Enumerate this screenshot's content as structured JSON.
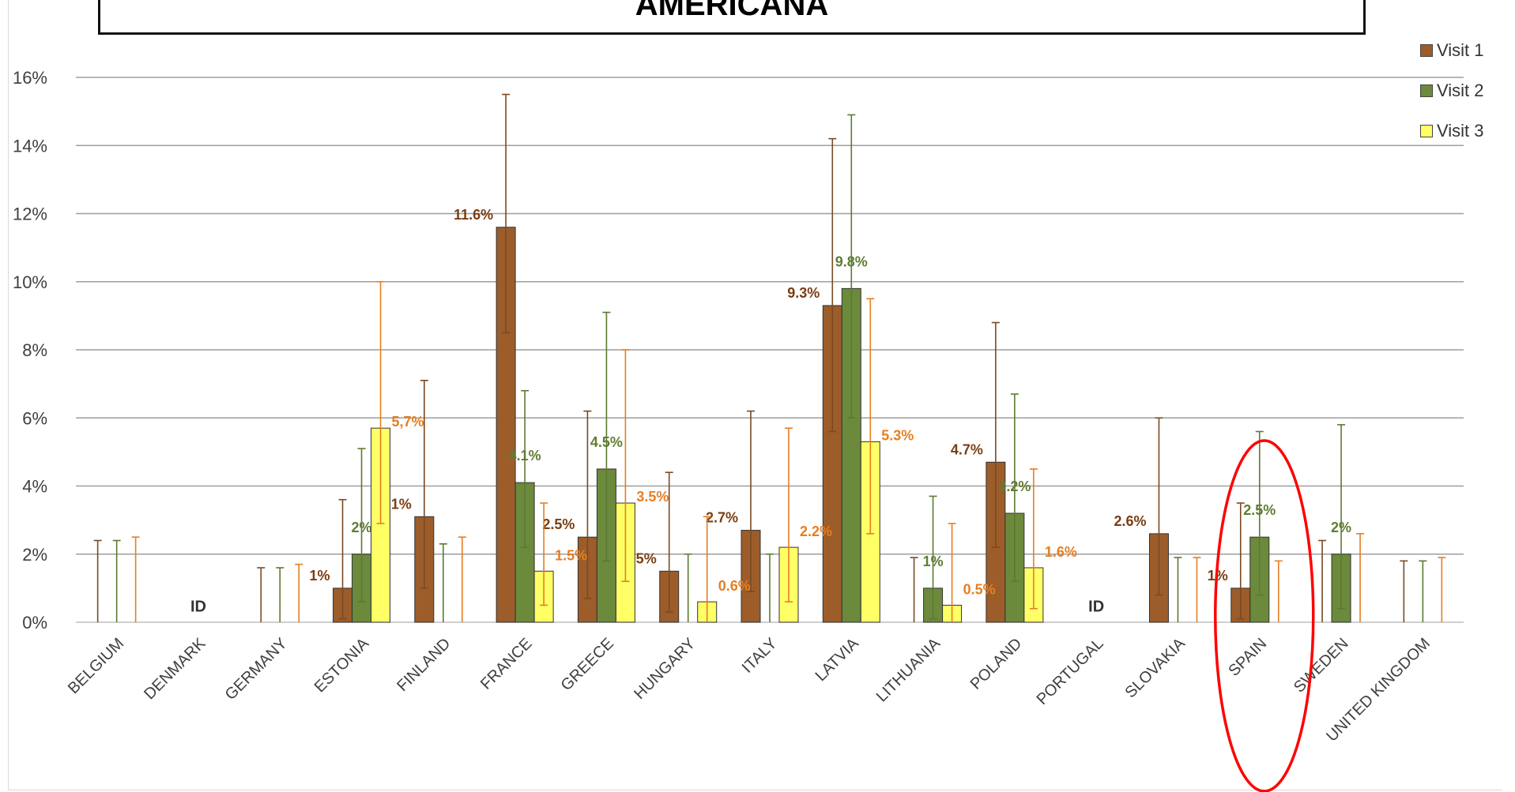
{
  "title": "AMERICANA",
  "legend": [
    {
      "name": "Visit 1",
      "color": "#9c5d2a"
    },
    {
      "name": "Visit 2",
      "color": "#6b8a3c"
    },
    {
      "name": "Visit 3",
      "color": "#ffff66"
    }
  ],
  "annotation": {
    "type": "red-ellipse",
    "target": "SPAIN",
    "color": "#ff0000"
  },
  "chart_data": {
    "type": "bar",
    "title": "AMERICANA",
    "xlabel": "",
    "ylabel": "",
    "ylim": [
      0,
      16
    ],
    "yticks": [
      "0%",
      "2%",
      "4%",
      "6%",
      "8%",
      "10%",
      "12%",
      "14%",
      "16%"
    ],
    "grid": true,
    "legend_position": "top-right",
    "categories": [
      "BELGIUM",
      "DENMARK",
      "GERMANY",
      "ESTONIA",
      "FINLAND",
      "FRANCE",
      "GREECE",
      "HUNGARY",
      "ITALY",
      "LATVIA",
      "LITHUANIA",
      "POLAND",
      "PORTUGAL",
      "SLOVAKIA",
      "SPAIN",
      "SWEDEN",
      "UNITED KINGDOM"
    ],
    "category_notes": [
      "",
      "ID",
      "",
      "",
      "",
      "",
      "",
      "",
      "",
      "",
      "",
      "",
      "ID",
      "",
      "",
      "",
      ""
    ],
    "series": [
      {
        "name": "Visit 1",
        "color": "#9c5d2a",
        "label_color": "#7a3d12",
        "values": [
          0,
          null,
          0,
          1.0,
          3.1,
          11.6,
          2.5,
          1.5,
          2.7,
          9.3,
          0,
          4.7,
          null,
          2.6,
          1.0,
          0,
          0
        ],
        "err_upper": [
          2.4,
          null,
          1.6,
          3.6,
          7.1,
          15.5,
          6.2,
          4.4,
          6.2,
          14.2,
          1.9,
          8.8,
          null,
          6.0,
          3.5,
          2.4,
          1.8
        ],
        "err_lower": [
          0,
          null,
          0,
          0.1,
          1.0,
          8.5,
          0.7,
          0.3,
          0.9,
          5.6,
          0,
          2.2,
          null,
          0.8,
          0.1,
          0,
          0
        ],
        "labels": [
          "",
          "",
          "",
          "1%",
          "3,1%",
          "11.6%",
          "2.5%",
          "1.5%",
          "2.7%",
          "9.3%",
          "",
          "4.7%",
          "",
          "2.6%",
          "1%",
          "",
          ""
        ]
      },
      {
        "name": "Visit 2",
        "color": "#6b8a3c",
        "label_color": "#5f7d32",
        "values": [
          0,
          null,
          0,
          2.0,
          0,
          4.1,
          4.5,
          0,
          0,
          9.8,
          1.0,
          3.2,
          null,
          0,
          2.5,
          2.0,
          0
        ],
        "err_upper": [
          2.4,
          null,
          1.6,
          5.1,
          2.3,
          6.8,
          9.1,
          2.0,
          2.0,
          14.9,
          3.7,
          6.7,
          null,
          1.9,
          5.6,
          5.8,
          1.8
        ],
        "err_lower": [
          0,
          null,
          0,
          0.6,
          0,
          2.2,
          1.8,
          0,
          0,
          6.0,
          0.1,
          1.2,
          null,
          0,
          0.8,
          0.4,
          0
        ],
        "labels": [
          "",
          "",
          "",
          "2%",
          "",
          "4.1%",
          "4.5%",
          "",
          "",
          "9.8%",
          "1%",
          "3.2%",
          "",
          "",
          "2.5%",
          "2%",
          ""
        ]
      },
      {
        "name": "Visit 3",
        "color": "#ffff66",
        "label_color": "#e67e22",
        "values": [
          0,
          null,
          0,
          5.7,
          0,
          1.5,
          3.5,
          0.6,
          2.2,
          5.3,
          0.5,
          1.6,
          null,
          0,
          0,
          0,
          0
        ],
        "err_upper": [
          2.5,
          null,
          1.7,
          10.0,
          2.5,
          3.5,
          8.0,
          3.1,
          5.7,
          9.5,
          2.9,
          4.5,
          null,
          1.9,
          1.8,
          2.6,
          1.9
        ],
        "err_lower": [
          0,
          null,
          0,
          2.9,
          0,
          0.5,
          1.2,
          0,
          0.6,
          2.6,
          0,
          0.4,
          null,
          0,
          0,
          0,
          0
        ],
        "labels": [
          "",
          "",
          "",
          "5,7%",
          "",
          "1.5%",
          "3.5%",
          "0.6%",
          "2.2%",
          "5.3%",
          "0.5%",
          "1.6%",
          "",
          "",
          "",
          "",
          ""
        ]
      }
    ]
  }
}
